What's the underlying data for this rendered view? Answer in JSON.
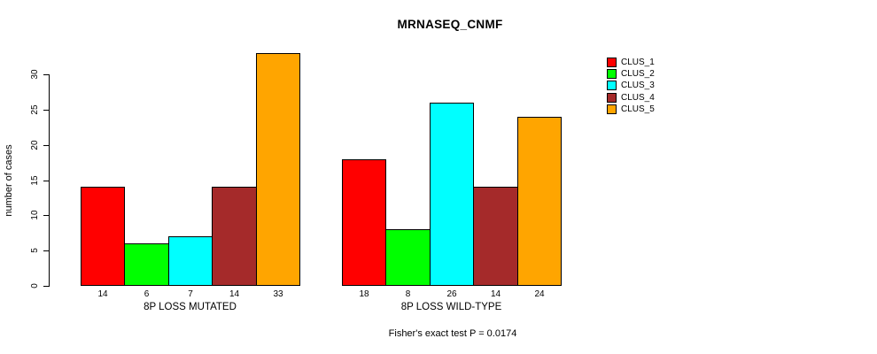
{
  "chart": {
    "title": "MRNASEQ_CNMF",
    "ylabel": "number of cases",
    "footer": "Fisher's exact test P = 0.0174"
  },
  "chart_data": {
    "type": "bar",
    "title": "MRNASEQ_CNMF",
    "xlabel": "",
    "ylabel": "number of cases",
    "categories": [
      "8P LOSS MUTATED",
      "8P LOSS WILD-TYPE"
    ],
    "clusters": [
      "CLUS_1",
      "CLUS_2",
      "CLUS_3",
      "CLUS_4",
      "CLUS_5"
    ],
    "colors": [
      "#FF0000",
      "#00FF00",
      "#00FFFF",
      "#A52A2A",
      "#FFA500"
    ],
    "series": [
      {
        "group": "8P LOSS MUTATED",
        "values": [
          14,
          6,
          7,
          14,
          33
        ]
      },
      {
        "group": "8P LOSS WILD-TYPE",
        "values": [
          18,
          8,
          26,
          14,
          24
        ]
      }
    ],
    "bar_value_labels": [
      [
        14,
        6,
        7,
        14,
        33
      ],
      [
        18,
        8,
        26,
        14,
        24
      ]
    ],
    "yticks": [
      0,
      5,
      10,
      15,
      20,
      25,
      30
    ],
    "axis_max_tick": 30,
    "ylim": [
      0,
      33
    ],
    "grid": false,
    "legend_position": "top-right",
    "legend_entries": [
      "CLUS_1",
      "CLUS_2",
      "CLUS_3",
      "CLUS_4",
      "CLUS_5"
    ],
    "annotation": "Fisher's exact test P = 0.0174"
  }
}
